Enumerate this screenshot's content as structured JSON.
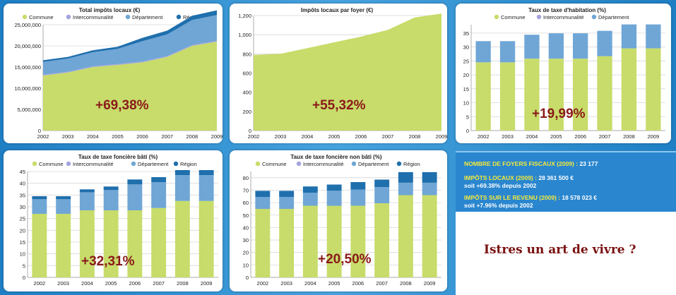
{
  "colors": {
    "commune": "#c7dc6a",
    "intercommunalite": "#a3a3de",
    "departement": "#6fa6d6",
    "region": "#1f6fad",
    "big_label": "#8b1a1a",
    "axis_text": "#222222"
  },
  "legend_labels": {
    "commune": "Commune",
    "intercommunalite": "Intercommunalité",
    "departement": "Département",
    "region": "Région"
  },
  "info": {
    "foyers_label": "NOMBRE DE FOYERS FISCAUX (2009) :",
    "foyers_value": "23 177",
    "impots_label": "IMPÔTS LOCAUX (2009) :",
    "impots_value": "28 361 500 €",
    "impots_sub": "soit +69.38% depuis 2002",
    "revenu_label": "IMPÔTS SUR LE REVENU (2009) :",
    "revenu_value": "18 578 023 €",
    "revenu_sub": "soit +7.96% depuis 2002"
  },
  "slogan": "Istres un art de vivre ?",
  "chart_data": [
    {
      "id": "c1",
      "type": "area",
      "title": "Total impôts locaux (€)",
      "big_label": "+69,38%",
      "categories": [
        "2002",
        "2003",
        "2004",
        "2005",
        "2006",
        "2007",
        "2008",
        "2009"
      ],
      "ylim": [
        0,
        25000000
      ],
      "yticks": [
        "0",
        "5,000,000",
        "10,000,000",
        "15,000,000",
        "20,000,000",
        "25,000,000"
      ],
      "ytick_values": [
        0,
        5000000,
        10000000,
        15000000,
        20000000,
        25000000
      ],
      "legend": [
        "commune",
        "intercommunalite",
        "departement",
        "region"
      ],
      "series": [
        {
          "name": "Commune",
          "key": "commune",
          "values": [
            13000000,
            13700000,
            15000000,
            15500000,
            16100000,
            17400000,
            20000000,
            21000000
          ]
        },
        {
          "name": "Intercommunalité",
          "key": "intercommunalite",
          "values": [
            200000,
            200000,
            200000,
            200000,
            200000,
            200000,
            200000,
            200000
          ]
        },
        {
          "name": "Département",
          "key": "departement",
          "values": [
            3000000,
            3100000,
            3300000,
            3600000,
            4800000,
            5100000,
            5900000,
            6100000
          ]
        },
        {
          "name": "Région",
          "key": "region",
          "values": [
            400000,
            400000,
            450000,
            500000,
            800000,
            900000,
            1000000,
            1100000
          ]
        }
      ]
    },
    {
      "id": "c2",
      "type": "area",
      "title": "Impôts locaux par foyer (€)",
      "big_label": "+55,32%",
      "categories": [
        "2002",
        "2003",
        "2004",
        "2005",
        "2006",
        "2007",
        "2008",
        "2009"
      ],
      "ylim": [
        0,
        1200
      ],
      "yticks": [
        "0",
        "200",
        "400",
        "600",
        "800",
        "1,000",
        "1,200"
      ],
      "ytick_values": [
        0,
        200,
        400,
        600,
        800,
        1000,
        1200
      ],
      "legend": [],
      "series": [
        {
          "name": "Impôts locaux par foyer",
          "key": "commune",
          "values": [
            790,
            800,
            860,
            920,
            980,
            1050,
            1180,
            1220
          ]
        }
      ]
    },
    {
      "id": "c3",
      "type": "bar",
      "title": "Taux de taxe d'habitation (%)",
      "big_label": "+19,99%",
      "categories": [
        "2002",
        "2003",
        "2004",
        "2005",
        "2006",
        "2007",
        "2008",
        "2009"
      ],
      "ylim": [
        0,
        38
      ],
      "yticks": [
        "0",
        "5",
        "10",
        "15",
        "20",
        "25",
        "30",
        "35"
      ],
      "ytick_values": [
        0,
        5,
        10,
        15,
        20,
        25,
        30,
        35
      ],
      "legend": [
        "commune",
        "intercommunalite",
        "departement"
      ],
      "series": [
        {
          "name": "Commune",
          "key": "commune",
          "values": [
            24.5,
            24.5,
            25.8,
            25.8,
            25.8,
            26.7,
            29.5,
            29.5
          ]
        },
        {
          "name": "Intercommunalité",
          "key": "intercommunalite",
          "values": [
            0,
            0,
            0,
            0,
            0,
            0,
            0,
            0
          ]
        },
        {
          "name": "Département",
          "key": "departement",
          "values": [
            7.6,
            7.6,
            8.6,
            9.1,
            9.1,
            9.1,
            8.6,
            8.6
          ]
        }
      ]
    },
    {
      "id": "c4",
      "type": "bar",
      "title": "Taux de taxe foncière bâti (%)",
      "big_label": "+32,31%",
      "categories": [
        "2002",
        "2003",
        "2004",
        "2005",
        "2006",
        "2007",
        "2008",
        "2009"
      ],
      "ylim": [
        0,
        45
      ],
      "yticks": [
        "0",
        "5",
        "10",
        "15",
        "20",
        "25",
        "30",
        "35",
        "40",
        "45"
      ],
      "ytick_values": [
        0,
        5,
        10,
        15,
        20,
        25,
        30,
        35,
        40,
        45
      ],
      "legend": [
        "commune",
        "intercommunalite",
        "departement",
        "region"
      ],
      "series": [
        {
          "name": "Commune",
          "key": "commune",
          "values": [
            27,
            27,
            28.5,
            28.5,
            28.5,
            29.5,
            32.5,
            32.5
          ]
        },
        {
          "name": "Intercommunalité",
          "key": "intercommunalite",
          "values": [
            0,
            0,
            0,
            0,
            0,
            0,
            0,
            0
          ]
        },
        {
          "name": "Département",
          "key": "departement",
          "values": [
            6.2,
            6.2,
            7.6,
            8.6,
            11,
            11,
            11,
            11
          ]
        },
        {
          "name": "Région",
          "key": "region",
          "values": [
            1.3,
            1.3,
            1.3,
            1.5,
            2.1,
            2.1,
            2.1,
            2.1
          ]
        }
      ]
    },
    {
      "id": "c5",
      "type": "bar",
      "title": "Taux de taxe foncière non bâti (%)",
      "big_label": "+20,50%",
      "categories": [
        "2002",
        "2003",
        "2004",
        "2005",
        "2006",
        "2007",
        "2008",
        "2009"
      ],
      "ylim": [
        0,
        85
      ],
      "yticks": [
        "0",
        "10",
        "20",
        "30",
        "40",
        "50",
        "60",
        "70",
        "80"
      ],
      "ytick_values": [
        0,
        10,
        20,
        30,
        40,
        50,
        60,
        70,
        80
      ],
      "legend": [
        "commune",
        "intercommunalite",
        "departement",
        "region"
      ],
      "series": [
        {
          "name": "Commune",
          "key": "commune",
          "values": [
            55,
            55,
            57.5,
            57.5,
            57.5,
            59.5,
            66,
            66
          ]
        },
        {
          "name": "Intercommunalité",
          "key": "intercommunalite",
          "values": [
            0,
            0,
            0,
            0,
            0,
            0,
            0,
            0
          ]
        },
        {
          "name": "Département",
          "key": "departement",
          "values": [
            9.5,
            9.5,
            10.5,
            12,
            13,
            13,
            10,
            10
          ]
        },
        {
          "name": "Région",
          "key": "region",
          "values": [
            5,
            5,
            5,
            5,
            6,
            6,
            8.5,
            8.5
          ]
        }
      ]
    }
  ]
}
